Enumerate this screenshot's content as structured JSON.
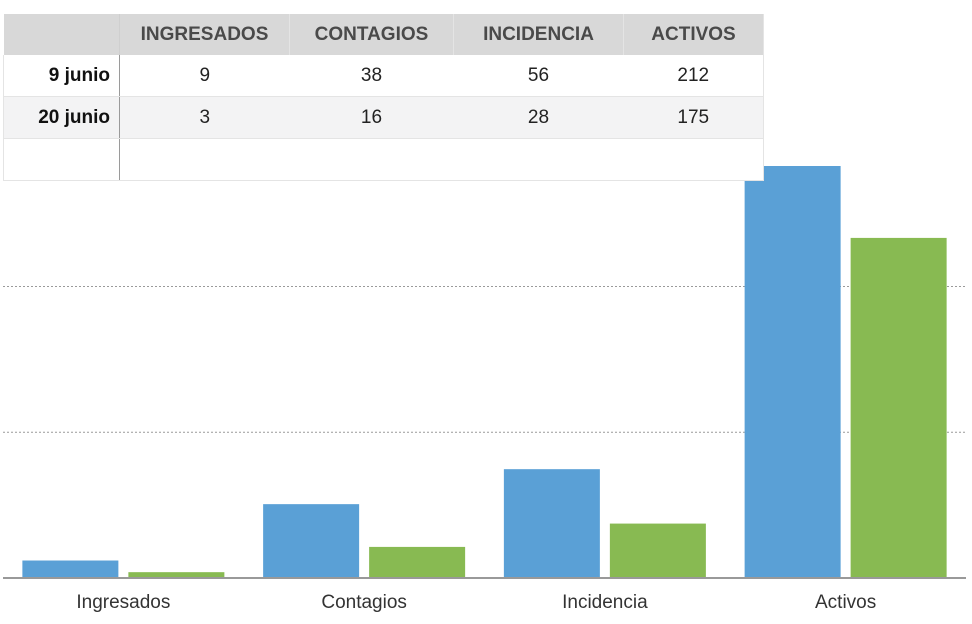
{
  "chart_data": {
    "type": "bar",
    "categories": [
      "Ingresados",
      "Contagios",
      "Incidencia",
      "Activos"
    ],
    "series": [
      {
        "name": "9 junio",
        "values": [
          9,
          38,
          56,
          212
        ]
      },
      {
        "name": "20 junio",
        "values": [
          3,
          16,
          28,
          175
        ]
      }
    ],
    "ylim": [
      0,
      250
    ],
    "grid": true,
    "colors": [
      "#5aa0d6",
      "#88ba52"
    ]
  },
  "table": {
    "headers": [
      "INGRESADOS",
      "CONTAGIOS",
      "INCIDENCIA",
      "ACTIVOS"
    ],
    "rows": [
      {
        "label": "9 junio",
        "cells": [
          "9",
          "38",
          "56",
          "212"
        ]
      },
      {
        "label": "20 junio",
        "cells": [
          "3",
          "16",
          "28",
          "175"
        ]
      }
    ]
  }
}
